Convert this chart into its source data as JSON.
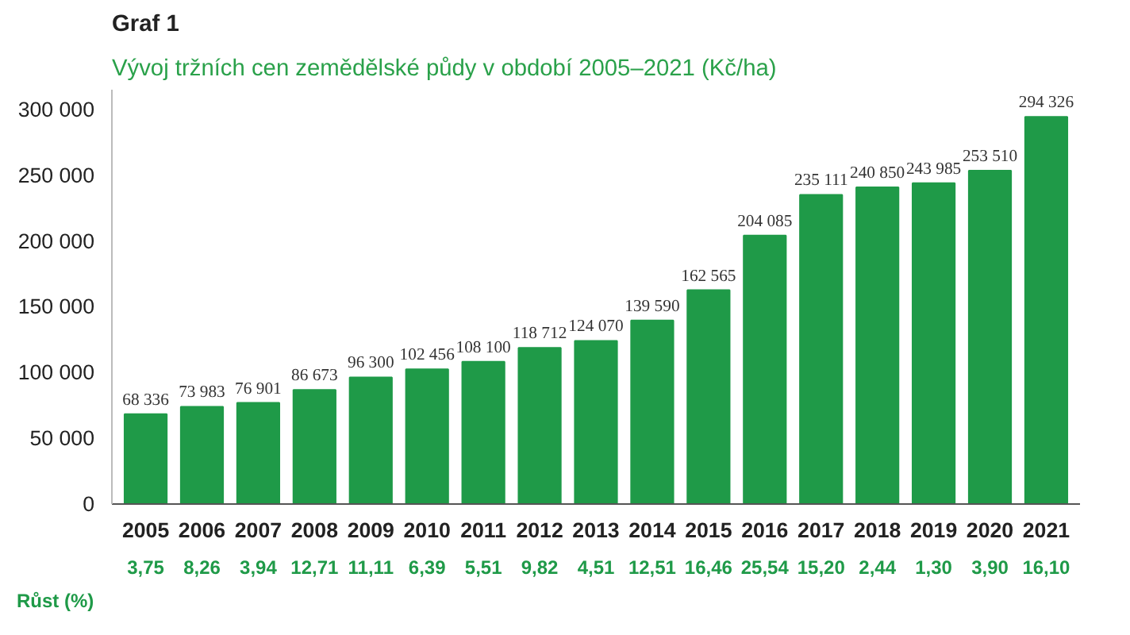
{
  "chart_data": {
    "type": "bar",
    "title": "Graf 1",
    "subtitle": "Vývoj tržních cen zemědělské půdy v období 2005–2021 (Kč/ha)",
    "categories": [
      "2005",
      "2006",
      "2007",
      "2008",
      "2009",
      "2010",
      "2011",
      "2012",
      "2013",
      "2014",
      "2015",
      "2016",
      "2017",
      "2018",
      "2019",
      "2020",
      "2021"
    ],
    "values": [
      68336,
      73983,
      76901,
      86673,
      96300,
      102456,
      108100,
      118712,
      124070,
      139590,
      162565,
      204085,
      235111,
      240850,
      243985,
      253510,
      294326
    ],
    "value_labels": [
      "68 336",
      "73 983",
      "76 901",
      "86 673",
      "96 300",
      "102 456",
      "108 100",
      "118 712",
      "124 070",
      "139 590",
      "162 565",
      "204 085",
      "235 111",
      "240 850",
      "243 985",
      "253 510",
      "294 326"
    ],
    "color": "#1f9a48",
    "ylim": [
      0,
      315000
    ],
    "yticks": [
      {
        "value": 0,
        "label": "0"
      },
      {
        "value": 50000,
        "label": "50 000"
      },
      {
        "value": 100000,
        "label": "100 000"
      },
      {
        "value": 150000,
        "label": "150 000"
      },
      {
        "value": 200000,
        "label": "200 000"
      },
      {
        "value": 250000,
        "label": "250 000"
      },
      {
        "value": 300000,
        "label": "300 000"
      }
    ],
    "grid": false,
    "annotations": [
      "Růst (%)",
      "3,75",
      "8,26",
      "3,94",
      "12,71",
      "11,11",
      "6,39",
      "5,51",
      "9,82",
      "4,51",
      "12,51",
      "16,46",
      "25,54",
      "15,20",
      "2,44",
      "1,30",
      "3,90",
      "16,10"
    ]
  }
}
